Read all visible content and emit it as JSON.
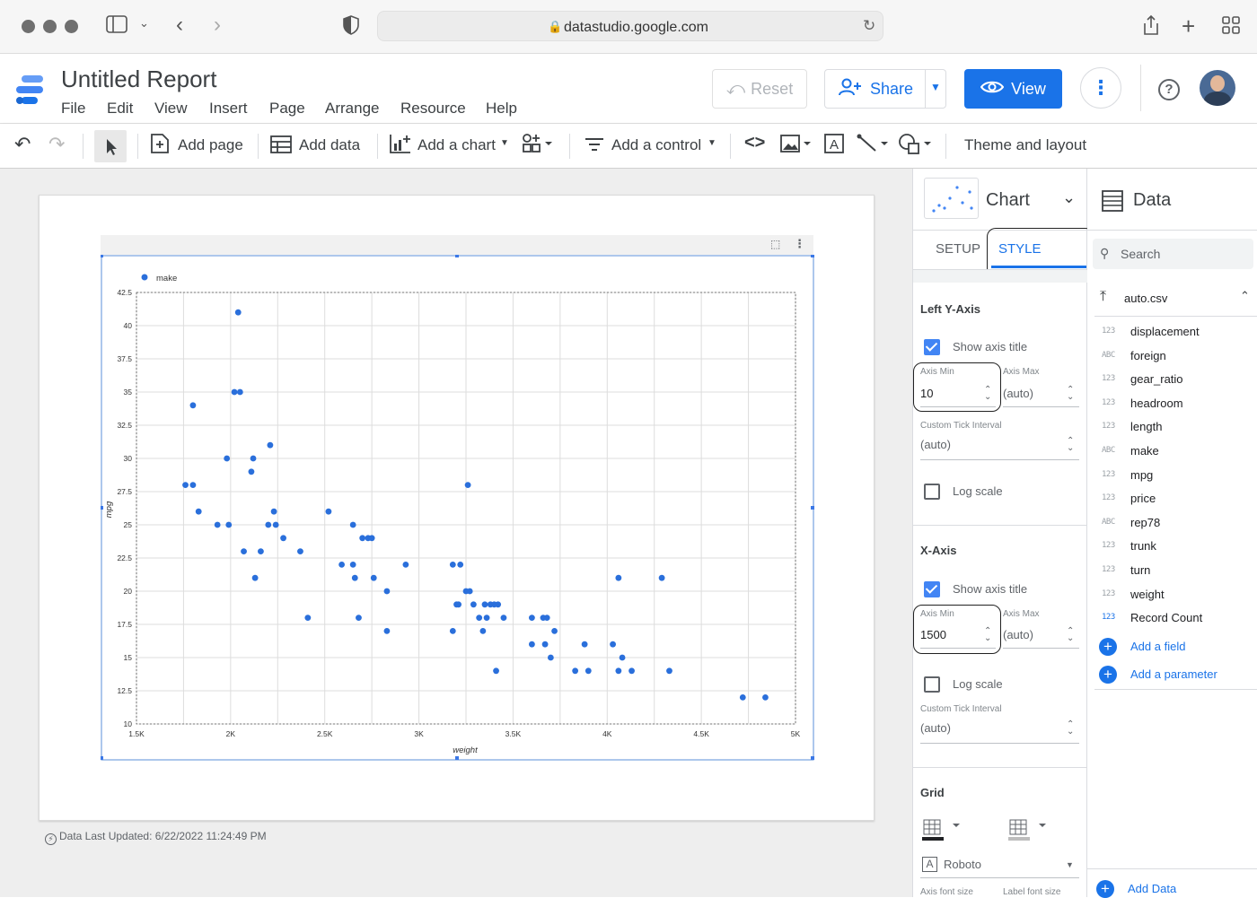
{
  "browser": {
    "url": "datastudio.google.com"
  },
  "header": {
    "title": "Untitled Report",
    "menus": [
      "File",
      "Edit",
      "View",
      "Insert",
      "Page",
      "Arrange",
      "Resource",
      "Help"
    ],
    "reset_label": "Reset",
    "share_label": "Share",
    "view_label": "View"
  },
  "toolbar": {
    "add_page": "Add page",
    "add_data": "Add data",
    "add_chart": "Add a chart",
    "add_control": "Add a control",
    "theme": "Theme and layout"
  },
  "report": {
    "last_updated": "Data Last Updated: 6/22/2022 11:24:49 PM"
  },
  "chart_data": {
    "type": "scatter",
    "legend": "make",
    "legend_position": "top-left",
    "xlabel": "weight",
    "ylabel": "mpg",
    "xlim": [
      1500,
      5000
    ],
    "ylim": [
      10,
      42.5
    ],
    "grid": true,
    "color": "#2a6fdb",
    "x_ticks": [
      "1.5K",
      "2K",
      "2.5K",
      "3K",
      "3.5K",
      "4K",
      "4.5K",
      "5K"
    ],
    "y_ticks": [
      "10",
      "12.5",
      "15",
      "17.5",
      "20",
      "22.5",
      "25",
      "27.5",
      "30",
      "32.5",
      "35",
      "37.5",
      "40",
      "42.5"
    ],
    "points": [
      [
        1760,
        28
      ],
      [
        1800,
        34
      ],
      [
        1800,
        28
      ],
      [
        1830,
        26
      ],
      [
        1930,
        25
      ],
      [
        1980,
        30
      ],
      [
        1990,
        25
      ],
      [
        2020,
        35
      ],
      [
        2040,
        41
      ],
      [
        2050,
        35
      ],
      [
        2070,
        23
      ],
      [
        2110,
        29
      ],
      [
        2120,
        30
      ],
      [
        2130,
        21
      ],
      [
        2160,
        23
      ],
      [
        2200,
        25
      ],
      [
        2210,
        31
      ],
      [
        2230,
        26
      ],
      [
        2240,
        25
      ],
      [
        2280,
        24
      ],
      [
        2370,
        23
      ],
      [
        2410,
        18
      ],
      [
        2520,
        26
      ],
      [
        2590,
        22
      ],
      [
        2650,
        22
      ],
      [
        2650,
        25
      ],
      [
        2660,
        21
      ],
      [
        2680,
        18
      ],
      [
        2700,
        24
      ],
      [
        2730,
        24
      ],
      [
        2750,
        24
      ],
      [
        2760,
        21
      ],
      [
        2830,
        20
      ],
      [
        2830,
        17
      ],
      [
        2930,
        22
      ],
      [
        3180,
        17
      ],
      [
        3180,
        22
      ],
      [
        3200,
        19
      ],
      [
        3210,
        19
      ],
      [
        3220,
        22
      ],
      [
        3250,
        20
      ],
      [
        3260,
        28
      ],
      [
        3270,
        20
      ],
      [
        3290,
        19
      ],
      [
        3320,
        18
      ],
      [
        3340,
        17
      ],
      [
        3350,
        19
      ],
      [
        3360,
        18
      ],
      [
        3380,
        19
      ],
      [
        3400,
        19
      ],
      [
        3410,
        14
      ],
      [
        3420,
        19
      ],
      [
        3450,
        18
      ],
      [
        3600,
        18
      ],
      [
        3600,
        16
      ],
      [
        3660,
        18
      ],
      [
        3670,
        16
      ],
      [
        3680,
        18
      ],
      [
        3700,
        15
      ],
      [
        3720,
        17
      ],
      [
        3830,
        14
      ],
      [
        3880,
        16
      ],
      [
        3900,
        14
      ],
      [
        4030,
        16
      ],
      [
        4060,
        21
      ],
      [
        4060,
        14
      ],
      [
        4080,
        15
      ],
      [
        4130,
        14
      ],
      [
        4290,
        21
      ],
      [
        4330,
        14
      ],
      [
        4720,
        12
      ],
      [
        4840,
        12
      ]
    ]
  },
  "chart_panel": {
    "title": "Chart",
    "tab_setup": "SETUP",
    "tab_style": "STYLE",
    "left_y_axis": "Left Y-Axis",
    "show_axis_title": "Show axis title",
    "axis_min_label": "Axis Min",
    "axis_max_label": "Axis Max",
    "y_axis_min": "10",
    "y_axis_max": "(auto)",
    "custom_tick_interval": "Custom Tick Interval",
    "y_tick_interval": "(auto)",
    "log_scale": "Log scale",
    "x_axis": "X-Axis",
    "x_axis_min": "1500",
    "x_axis_max": "(auto)",
    "x_tick_interval": "(auto)",
    "grid": "Grid",
    "font": "Roboto",
    "axis_font_size": "Axis font size",
    "label_font_size": "Label font size"
  },
  "data_panel": {
    "title": "Data",
    "search_placeholder": "Search",
    "source": "auto.csv",
    "fields": [
      {
        "type": "123",
        "name": "displacement"
      },
      {
        "type": "ABC",
        "name": "foreign"
      },
      {
        "type": "123",
        "name": "gear_ratio"
      },
      {
        "type": "123",
        "name": "headroom"
      },
      {
        "type": "123",
        "name": "length"
      },
      {
        "type": "ABC",
        "name": "make"
      },
      {
        "type": "123",
        "name": "mpg"
      },
      {
        "type": "123",
        "name": "price"
      },
      {
        "type": "ABC",
        "name": "rep78"
      },
      {
        "type": "123",
        "name": "trunk"
      },
      {
        "type": "123",
        "name": "turn"
      },
      {
        "type": "123",
        "name": "weight"
      },
      {
        "type": "123",
        "name": "Record Count"
      }
    ],
    "add_field": "Add a field",
    "add_parameter": "Add a parameter",
    "add_data": "Add Data"
  }
}
